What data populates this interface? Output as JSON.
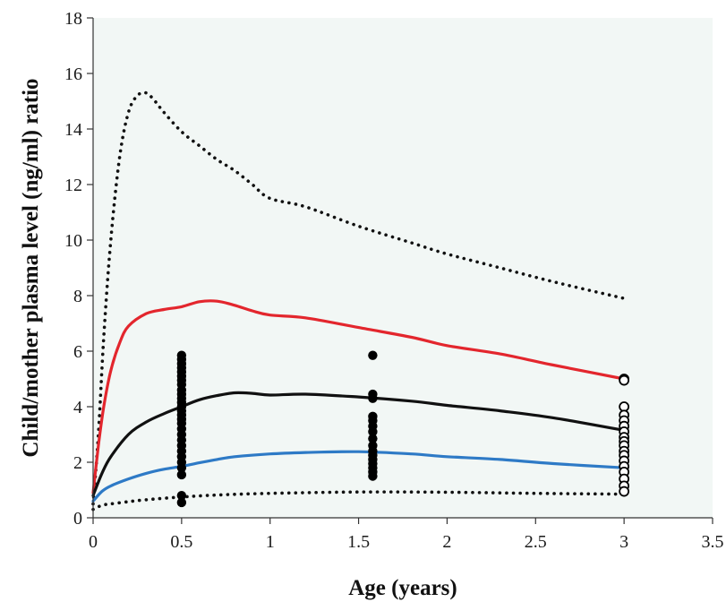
{
  "chart_data": {
    "type": "line",
    "title": "",
    "xlabel": "Age (years)",
    "ylabel": "Child/mother plasma level (ng/ml) ratio",
    "xlim": [
      0,
      3.5
    ],
    "ylim": [
      0,
      18
    ],
    "xticks": [
      0,
      0.5,
      1,
      1.5,
      2,
      2.5,
      3,
      3.5
    ],
    "xtick_labels": [
      "0",
      "0.5",
      "1",
      "1.5",
      "2",
      "2.5",
      "3",
      "3.5"
    ],
    "yticks": [
      0,
      2,
      4,
      6,
      8,
      10,
      12,
      14,
      16,
      18
    ],
    "ytick_labels": [
      "0",
      "2",
      "4",
      "6",
      "8",
      "10",
      "12",
      "14",
      "16",
      "18"
    ],
    "plot_background": "#f2f7f5",
    "grid": false,
    "legend": "none",
    "series": [
      {
        "style": "dotted",
        "color": "#111111",
        "x": [
          0,
          0.03,
          0.06,
          0.1,
          0.15,
          0.2,
          0.25,
          0.3,
          0.35,
          0.4,
          0.5,
          0.6,
          0.7,
          0.8,
          0.9,
          1.0,
          1.2,
          1.5,
          1.8,
          2.0,
          2.3,
          2.6,
          3.0
        ],
        "y": [
          0.5,
          3.0,
          6.5,
          10.0,
          13.0,
          14.6,
          15.2,
          15.3,
          15.0,
          14.6,
          13.9,
          13.4,
          12.9,
          12.5,
          12.0,
          11.5,
          11.2,
          10.5,
          9.9,
          9.5,
          9.0,
          8.5,
          7.9
        ]
      },
      {
        "style": "solid",
        "color": "#e3262d",
        "x": [
          0,
          0.03,
          0.06,
          0.1,
          0.15,
          0.2,
          0.3,
          0.4,
          0.5,
          0.6,
          0.7,
          0.8,
          0.9,
          1.0,
          1.2,
          1.5,
          1.8,
          2.0,
          2.3,
          2.6,
          3.0
        ],
        "y": [
          0.9,
          2.6,
          4.0,
          5.3,
          6.3,
          6.9,
          7.35,
          7.5,
          7.6,
          7.78,
          7.8,
          7.65,
          7.45,
          7.3,
          7.2,
          6.85,
          6.5,
          6.2,
          5.9,
          5.5,
          5.0
        ]
      },
      {
        "style": "solid",
        "color": "#111111",
        "x": [
          0,
          0.05,
          0.1,
          0.2,
          0.3,
          0.4,
          0.5,
          0.6,
          0.7,
          0.8,
          0.9,
          1.0,
          1.2,
          1.5,
          1.8,
          2.0,
          2.3,
          2.6,
          3.0
        ],
        "y": [
          0.8,
          1.6,
          2.2,
          3.0,
          3.45,
          3.75,
          4.0,
          4.25,
          4.4,
          4.5,
          4.48,
          4.42,
          4.45,
          4.35,
          4.2,
          4.05,
          3.85,
          3.6,
          3.15
        ]
      },
      {
        "style": "solid",
        "color": "#2e7ac6",
        "x": [
          0,
          0.05,
          0.1,
          0.2,
          0.3,
          0.4,
          0.5,
          0.6,
          0.7,
          0.8,
          1.0,
          1.2,
          1.5,
          1.8,
          2.0,
          2.3,
          2.6,
          3.0
        ],
        "y": [
          0.6,
          0.95,
          1.15,
          1.4,
          1.6,
          1.75,
          1.85,
          1.98,
          2.1,
          2.2,
          2.3,
          2.35,
          2.38,
          2.3,
          2.2,
          2.1,
          1.95,
          1.8
        ]
      },
      {
        "style": "dotted",
        "color": "#111111",
        "x": [
          0,
          0.05,
          0.1,
          0.2,
          0.3,
          0.5,
          0.7,
          1.0,
          1.5,
          2.0,
          2.5,
          3.0
        ],
        "y": [
          0.3,
          0.45,
          0.5,
          0.58,
          0.65,
          0.75,
          0.82,
          0.88,
          0.93,
          0.92,
          0.88,
          0.85
        ]
      }
    ],
    "scatter": [
      {
        "marker": "filled-circle",
        "color": "#000000",
        "x": [
          0.5,
          0.5,
          0.5,
          0.5,
          0.5,
          0.5,
          0.5,
          0.5,
          0.5,
          0.5,
          0.5,
          0.5,
          0.5,
          0.5,
          0.5,
          0.5,
          0.5,
          0.5,
          0.5,
          0.5,
          0.5,
          0.5,
          0.5,
          0.5,
          0.5,
          0.5,
          0.5,
          0.5
        ],
        "y": [
          5.85,
          5.7,
          5.55,
          5.4,
          5.25,
          5.1,
          4.95,
          4.8,
          4.6,
          4.45,
          4.3,
          4.15,
          4.0,
          3.85,
          3.7,
          3.55,
          3.4,
          3.2,
          3.0,
          2.8,
          2.6,
          2.4,
          2.2,
          2.0,
          1.8,
          1.55,
          0.8,
          0.55
        ]
      },
      {
        "marker": "filled-circle",
        "color": "#000000",
        "x": [
          1.58,
          1.58,
          1.58,
          1.58,
          1.58,
          1.58,
          1.58,
          1.58,
          1.58,
          1.58,
          1.58,
          1.58,
          1.58,
          1.58,
          1.58,
          1.58
        ],
        "y": [
          5.85,
          4.45,
          4.3,
          3.65,
          3.5,
          3.3,
          3.1,
          2.85,
          2.6,
          2.4,
          2.25,
          2.1,
          1.95,
          1.8,
          1.65,
          1.5
        ]
      },
      {
        "marker": "open-circle",
        "color": "#000000",
        "x": [
          3.0,
          3.0,
          3.0,
          3.0,
          3.0,
          3.0,
          3.0,
          3.0,
          3.0,
          3.0,
          3.0,
          3.0,
          3.0,
          3.0,
          3.0,
          3.0,
          3.0,
          3.0
        ],
        "y": [
          5.0,
          4.95,
          4.0,
          3.7,
          3.5,
          3.3,
          3.1,
          2.9,
          2.75,
          2.6,
          2.4,
          2.25,
          2.05,
          1.85,
          1.65,
          1.4,
          1.15,
          0.95
        ]
      }
    ]
  }
}
